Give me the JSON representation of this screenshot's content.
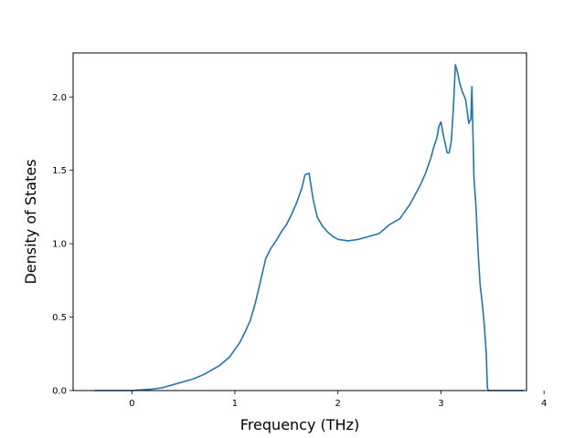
{
  "chart_data": {
    "type": "line",
    "title": "",
    "xlabel": "Frequency (THz)",
    "ylabel": "Density of States",
    "xlim": [
      -0.57,
      3.83
    ],
    "ylim": [
      0.0,
      2.3
    ],
    "xticks": [
      0,
      1,
      2,
      3,
      4
    ],
    "xtick_labels": [
      "0",
      "1",
      "2",
      "3",
      "4"
    ],
    "yticks": [
      0.0,
      0.5,
      1.0,
      1.5,
      2.0
    ],
    "ytick_labels": [
      "0.0",
      "0.5",
      "1.0",
      "1.5",
      "2.0"
    ],
    "grid": false,
    "legend": "none",
    "series": [
      {
        "color": "#1f77b4",
        "x": [
          -0.36,
          -0.2,
          0.0,
          0.1,
          0.2,
          0.3,
          0.4,
          0.5,
          0.6,
          0.7,
          0.75,
          0.8,
          0.85,
          0.9,
          0.95,
          1.0,
          1.05,
          1.1,
          1.15,
          1.2,
          1.25,
          1.3,
          1.35,
          1.4,
          1.45,
          1.5,
          1.55,
          1.6,
          1.65,
          1.68,
          1.72,
          1.76,
          1.8,
          1.85,
          1.9,
          1.95,
          2.0,
          2.1,
          2.2,
          2.3,
          2.4,
          2.5,
          2.6,
          2.7,
          2.8,
          2.85,
          2.9,
          2.93,
          2.96,
          2.98,
          3.0,
          3.02,
          3.06,
          3.08,
          3.1,
          3.12,
          3.14,
          3.16,
          3.18,
          3.2,
          3.24,
          3.27,
          3.29,
          3.3,
          3.32,
          3.34,
          3.36,
          3.38,
          3.4,
          3.42,
          3.44,
          3.45,
          3.46,
          3.48,
          3.6,
          3.8
        ],
        "y": [
          0.0,
          0.0,
          0.0,
          0.005,
          0.01,
          0.02,
          0.04,
          0.06,
          0.08,
          0.11,
          0.13,
          0.15,
          0.17,
          0.2,
          0.23,
          0.28,
          0.33,
          0.4,
          0.48,
          0.6,
          0.75,
          0.9,
          0.97,
          1.02,
          1.08,
          1.13,
          1.2,
          1.28,
          1.38,
          1.47,
          1.48,
          1.3,
          1.18,
          1.12,
          1.08,
          1.05,
          1.03,
          1.02,
          1.03,
          1.05,
          1.07,
          1.13,
          1.17,
          1.27,
          1.4,
          1.48,
          1.58,
          1.66,
          1.72,
          1.8,
          1.83,
          1.75,
          1.62,
          1.62,
          1.7,
          1.92,
          2.22,
          2.17,
          2.1,
          2.05,
          1.98,
          1.82,
          1.85,
          2.07,
          1.45,
          1.25,
          0.95,
          0.72,
          0.6,
          0.45,
          0.25,
          0.02,
          0.0,
          0.0,
          0.0,
          0.0
        ]
      }
    ]
  }
}
